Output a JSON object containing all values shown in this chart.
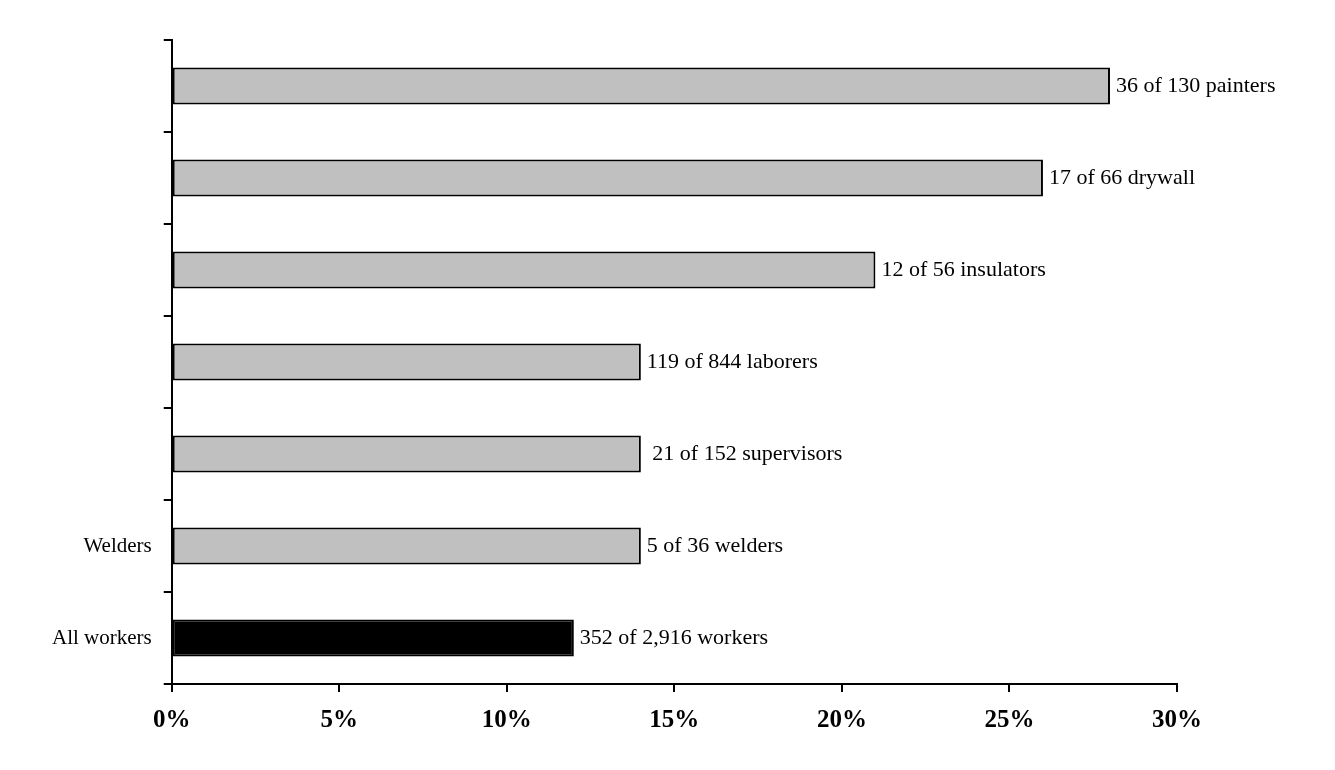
{
  "chart_data": {
    "type": "bar",
    "orientation": "horizontal",
    "categories": [
      null,
      null,
      null,
      null,
      null,
      "Welders",
      "All workers"
    ],
    "values": [
      28,
      26,
      21,
      14,
      14,
      14,
      12
    ],
    "colors": [
      "#c0c0c0",
      "#c0c0c0",
      "#c0c0c0",
      "#c0c0c0",
      "#c0c0c0",
      "#c0c0c0",
      "#000000"
    ],
    "annotations": [
      {
        "text": "36 of 130 painters",
        "x": 28
      },
      {
        "text": "17 of 66 drywall",
        "x": 26
      },
      {
        "text": "12 of 56 insulators",
        "x": 21
      },
      {
        "text": "119 of 844 laborers",
        "x": 14
      },
      {
        "text": " 21 of 152 supervisors",
        "x": 14
      },
      {
        "text": "5 of 36 welders",
        "x": 14,
        "y": "Welders"
      },
      {
        "text": "352 of 2,916 workers",
        "x": 12,
        "y": "All workers"
      }
    ],
    "xlim": [
      0,
      30
    ],
    "xticks": [
      {
        "value": 0,
        "label": "0%"
      },
      {
        "value": 5,
        "label": "5%"
      },
      {
        "value": 10,
        "label": "10%"
      },
      {
        "value": 15,
        "label": "15%"
      },
      {
        "value": 20,
        "label": "20%"
      },
      {
        "value": 25,
        "label": "25%"
      },
      {
        "value": 30,
        "label": "30%"
      }
    ],
    "grid": false,
    "legend": false
  }
}
